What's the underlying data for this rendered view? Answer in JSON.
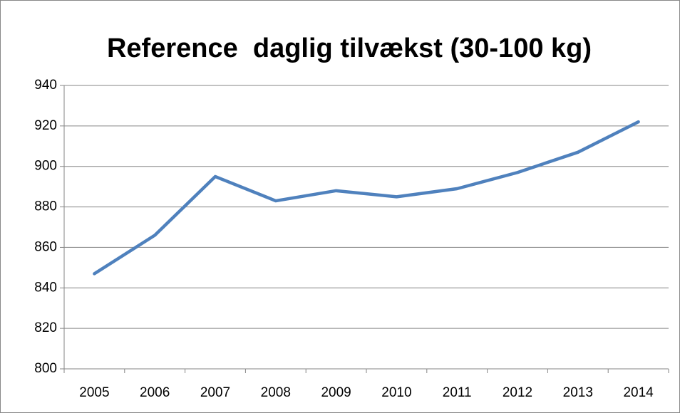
{
  "chart_data": {
    "type": "line",
    "title": "Reference  daglig tilvækst (30-100 kg)",
    "categories": [
      "2005",
      "2006",
      "2007",
      "2008",
      "2009",
      "2010",
      "2011",
      "2012",
      "2013",
      "2014"
    ],
    "values": [
      847,
      866,
      895,
      883,
      888,
      885,
      889,
      897,
      907,
      922
    ],
    "color": "#4f81bd",
    "ylim": [
      800,
      940
    ],
    "yticks": [
      800,
      820,
      840,
      860,
      880,
      900,
      920,
      940
    ],
    "grid": true
  }
}
